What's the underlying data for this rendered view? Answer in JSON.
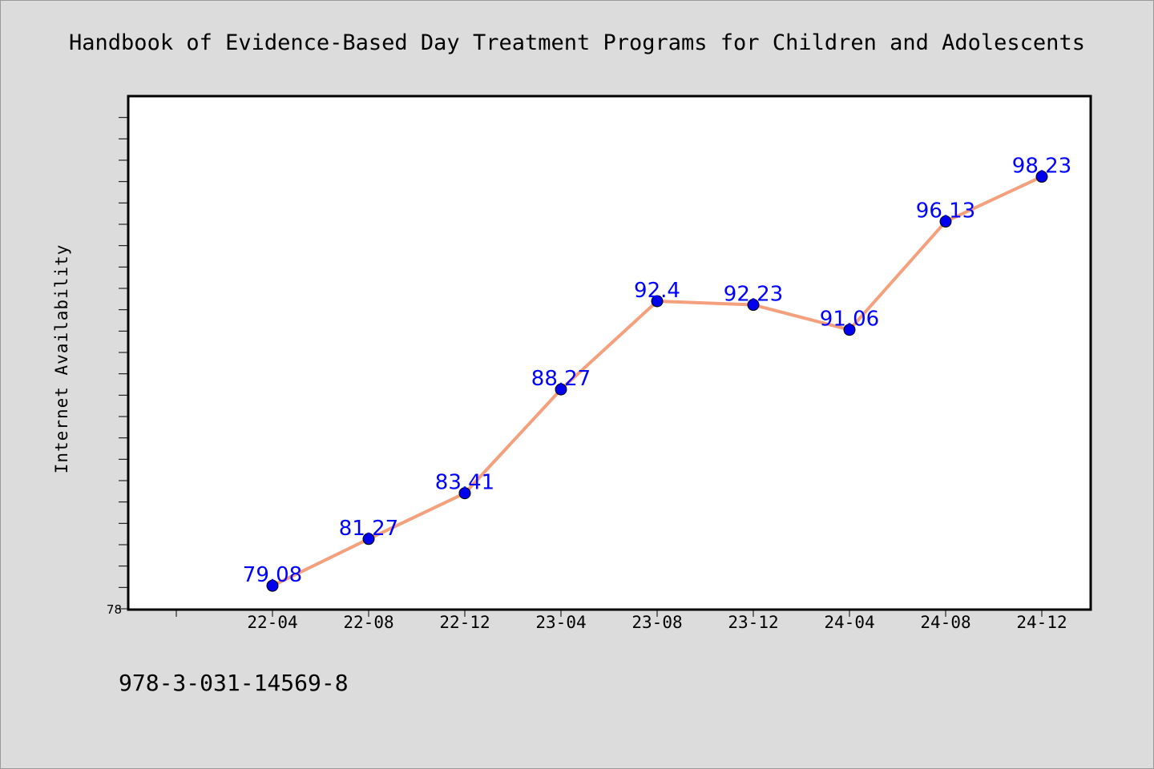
{
  "chart_data": {
    "type": "line",
    "title": "Handbook of Evidence-Based Day Treatment Programs for Children and Adolescents",
    "ylabel": "Internet Availability",
    "xlabel": "",
    "categories": [
      "22-04",
      "22-08",
      "22-12",
      "23-04",
      "23-08",
      "23-12",
      "24-04",
      "24-08",
      "24-12"
    ],
    "series": [
      {
        "values": [
          79.08,
          81.27,
          83.41,
          88.27,
          92.4,
          92.23,
          91.06,
          96.13,
          98.23
        ]
      }
    ],
    "data_labels": [
      "79.08",
      "81.27",
      "83.41",
      "88.27",
      "92.4",
      "92.23",
      "91.06",
      "96.13",
      "98.23"
    ],
    "ylim": [
      78,
      102
    ],
    "yticks_labeled": [
      "78"
    ],
    "grid": false,
    "legend": "none",
    "colors": {
      "line": "#f4a07c",
      "marker": "#0000ee",
      "label": "#0000ff",
      "plot_bg": "#ffffff",
      "page_bg": "#dcdcdc"
    }
  },
  "footer": {
    "isbn": "978-3-031-14569-8"
  }
}
